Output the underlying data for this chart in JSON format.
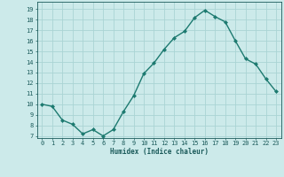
{
  "x": [
    0,
    1,
    2,
    3,
    4,
    5,
    6,
    7,
    8,
    9,
    10,
    11,
    12,
    13,
    14,
    15,
    16,
    17,
    18,
    19,
    20,
    21,
    22,
    23
  ],
  "y": [
    10.0,
    9.8,
    8.5,
    8.1,
    7.2,
    7.6,
    7.0,
    7.6,
    9.3,
    10.8,
    12.9,
    13.9,
    15.2,
    16.3,
    16.9,
    18.2,
    18.9,
    18.3,
    17.8,
    16.0,
    14.3,
    13.8,
    12.4,
    11.2
  ],
  "xlabel": "Humidex (Indice chaleur)",
  "xlim": [
    -0.5,
    23.5
  ],
  "ylim": [
    6.8,
    19.7
  ],
  "yticks": [
    7,
    8,
    9,
    10,
    11,
    12,
    13,
    14,
    15,
    16,
    17,
    18,
    19
  ],
  "xticks": [
    0,
    1,
    2,
    3,
    4,
    5,
    6,
    7,
    8,
    9,
    10,
    11,
    12,
    13,
    14,
    15,
    16,
    17,
    18,
    19,
    20,
    21,
    22,
    23
  ],
  "line_color": "#1d7a70",
  "marker_color": "#1d7a70",
  "bg_color": "#cceaea",
  "grid_color": "#aad4d4",
  "label_color": "#1a5a5a"
}
